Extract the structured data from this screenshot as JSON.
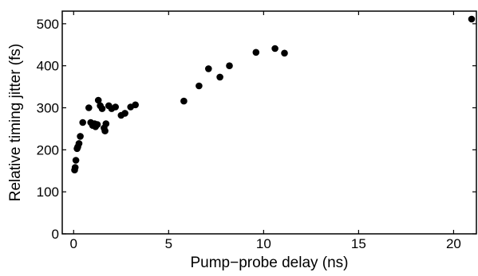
{
  "chart_data": {
    "type": "scatter",
    "title": "",
    "xlabel": "Pump−probe delay (ns)",
    "ylabel": "Relative timing jitter (fs)",
    "xlim": [
      -0.6,
      21.2
    ],
    "ylim": [
      0,
      530
    ],
    "xticks": [
      0,
      5,
      10,
      15,
      20
    ],
    "yticks": [
      0,
      100,
      200,
      300,
      400,
      500
    ],
    "grid": false,
    "legend": "none",
    "marker_color": "#000000",
    "series": [
      {
        "points": [
          [
            0.05,
            152
          ],
          [
            0.08,
            158
          ],
          [
            0.12,
            175
          ],
          [
            0.18,
            203
          ],
          [
            0.22,
            207
          ],
          [
            0.28,
            215
          ],
          [
            0.35,
            232
          ],
          [
            0.48,
            265
          ],
          [
            0.8,
            300
          ],
          [
            0.9,
            265
          ],
          [
            1.0,
            258
          ],
          [
            1.1,
            262
          ],
          [
            1.15,
            255
          ],
          [
            1.25,
            260
          ],
          [
            1.3,
            318
          ],
          [
            1.4,
            305
          ],
          [
            1.5,
            298
          ],
          [
            1.6,
            252
          ],
          [
            1.65,
            245
          ],
          [
            1.7,
            262
          ],
          [
            1.85,
            305
          ],
          [
            2.0,
            298
          ],
          [
            2.2,
            302
          ],
          [
            2.5,
            282
          ],
          [
            2.7,
            287
          ],
          [
            3.0,
            302
          ],
          [
            3.25,
            307
          ],
          [
            5.8,
            316
          ],
          [
            6.6,
            352
          ],
          [
            7.1,
            393
          ],
          [
            7.7,
            373
          ],
          [
            8.2,
            400
          ],
          [
            9.6,
            432
          ],
          [
            10.6,
            441
          ],
          [
            11.1,
            430
          ],
          [
            20.95,
            511
          ]
        ]
      }
    ]
  }
}
